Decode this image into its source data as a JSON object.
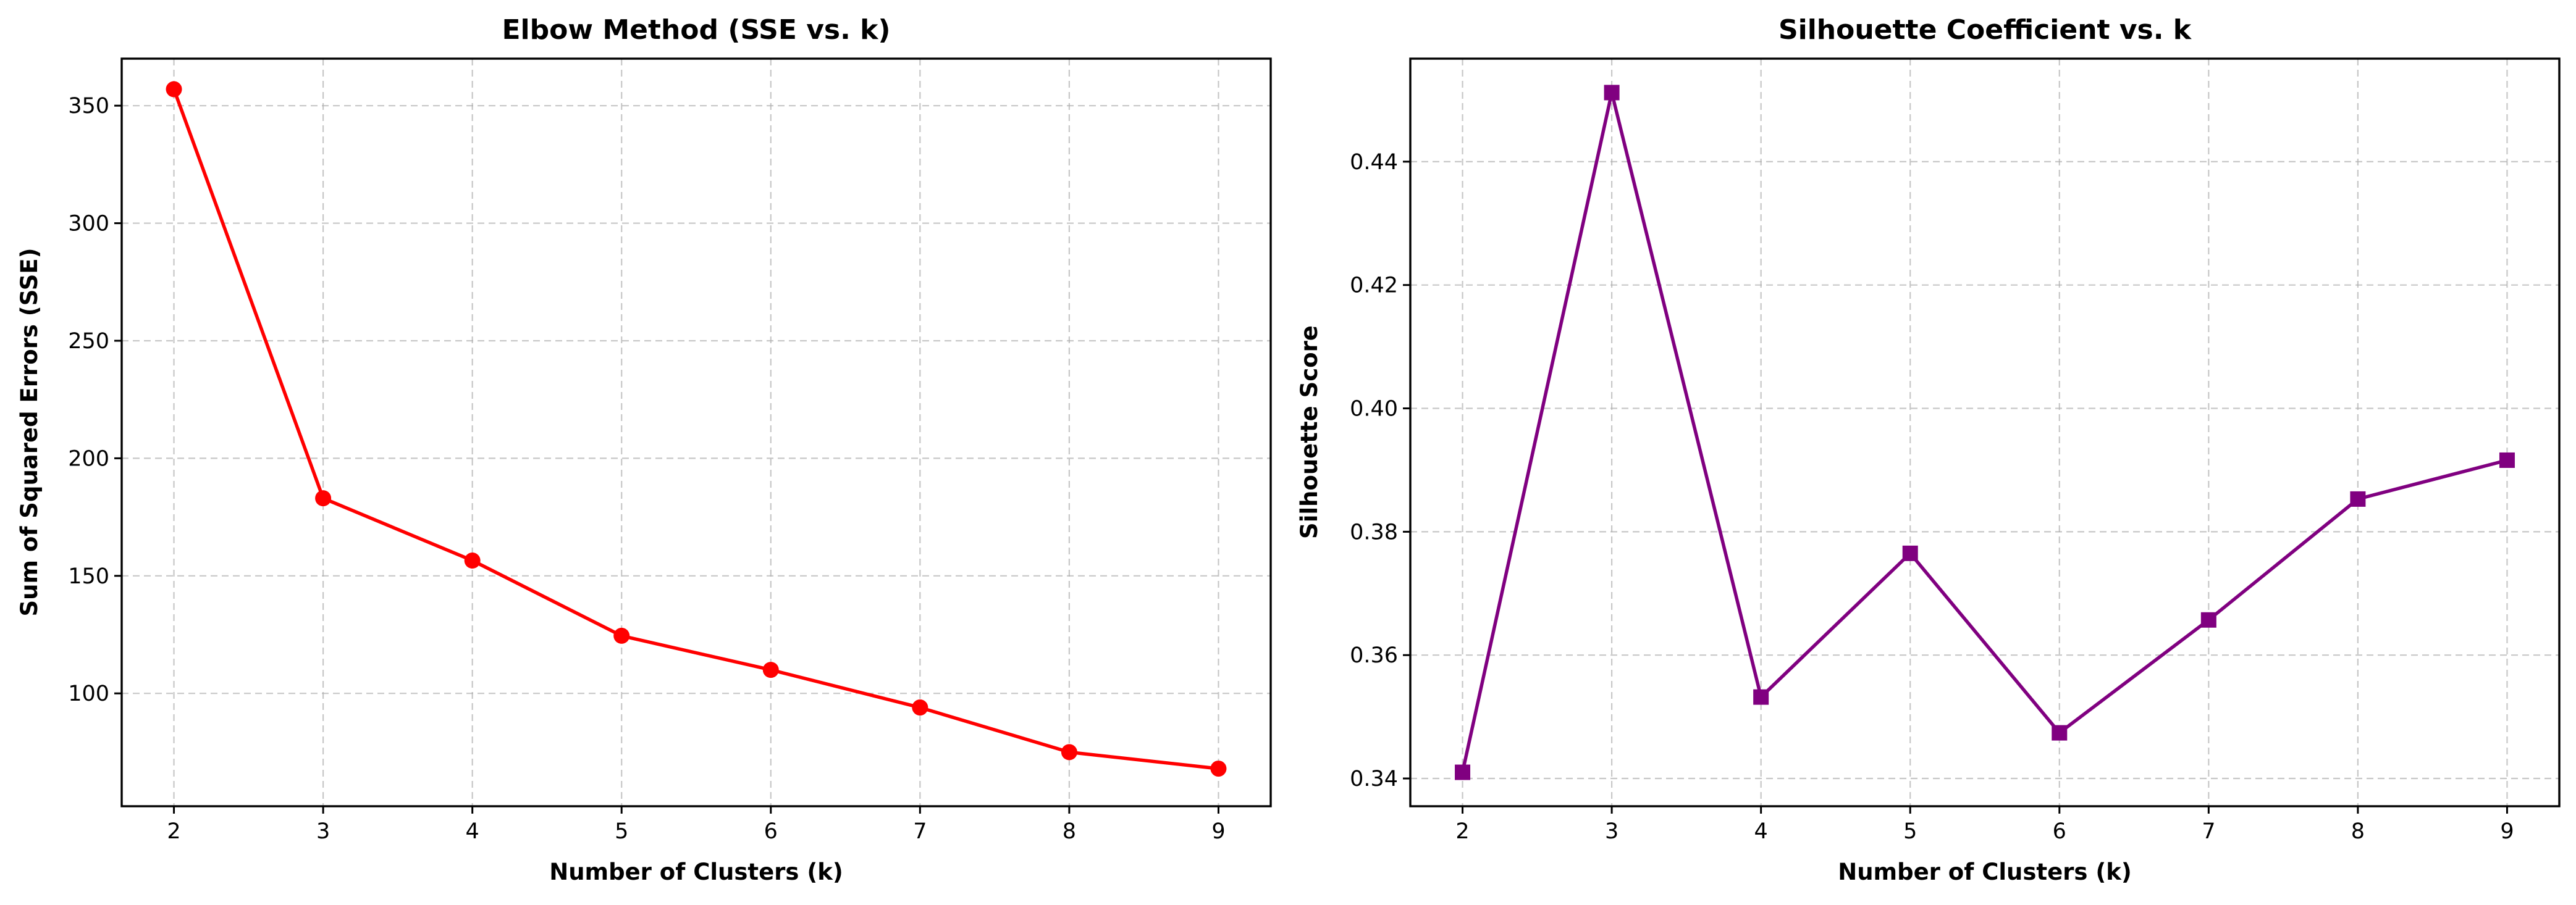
{
  "chart_data": [
    {
      "type": "line",
      "title": "Elbow Method (SSE vs. k)",
      "xlabel": "Number of Clusters (k)",
      "ylabel": "Sum of Squared Errors (SSE)",
      "x": [
        2,
        3,
        4,
        5,
        6,
        7,
        8,
        9
      ],
      "xticks": [
        "2",
        "3",
        "4",
        "5",
        "6",
        "7",
        "8",
        "9"
      ],
      "xlim": [
        1.65,
        9.35
      ],
      "yticks": [
        "100",
        "150",
        "200",
        "250",
        "300",
        "350"
      ],
      "ylim": [
        52,
        370
      ],
      "grid": true,
      "marker": "circle",
      "series": [
        {
          "color": "#ff0000",
          "values": [
            357,
            183,
            156.5,
            124.5,
            110,
            94,
            75,
            68
          ]
        }
      ]
    },
    {
      "type": "line",
      "title": "Silhouette Coefficient vs. k",
      "xlabel": "Number of Clusters (k)",
      "ylabel": "Silhouette Score",
      "x": [
        2,
        3,
        4,
        5,
        6,
        7,
        8,
        9
      ],
      "xticks": [
        "2",
        "3",
        "4",
        "5",
        "6",
        "7",
        "8",
        "9"
      ],
      "xlim": [
        1.65,
        9.35
      ],
      "yticks": [
        "0.34",
        "0.36",
        "0.38",
        "0.40",
        "0.42",
        "0.44"
      ],
      "ylim": [
        0.3355,
        0.4567
      ],
      "grid": true,
      "marker": "square",
      "series": [
        {
          "color": "#800080",
          "values": [
            0.341,
            0.4512,
            0.3532,
            0.3765,
            0.3474,
            0.3657,
            0.3853,
            0.3916
          ]
        }
      ]
    }
  ]
}
